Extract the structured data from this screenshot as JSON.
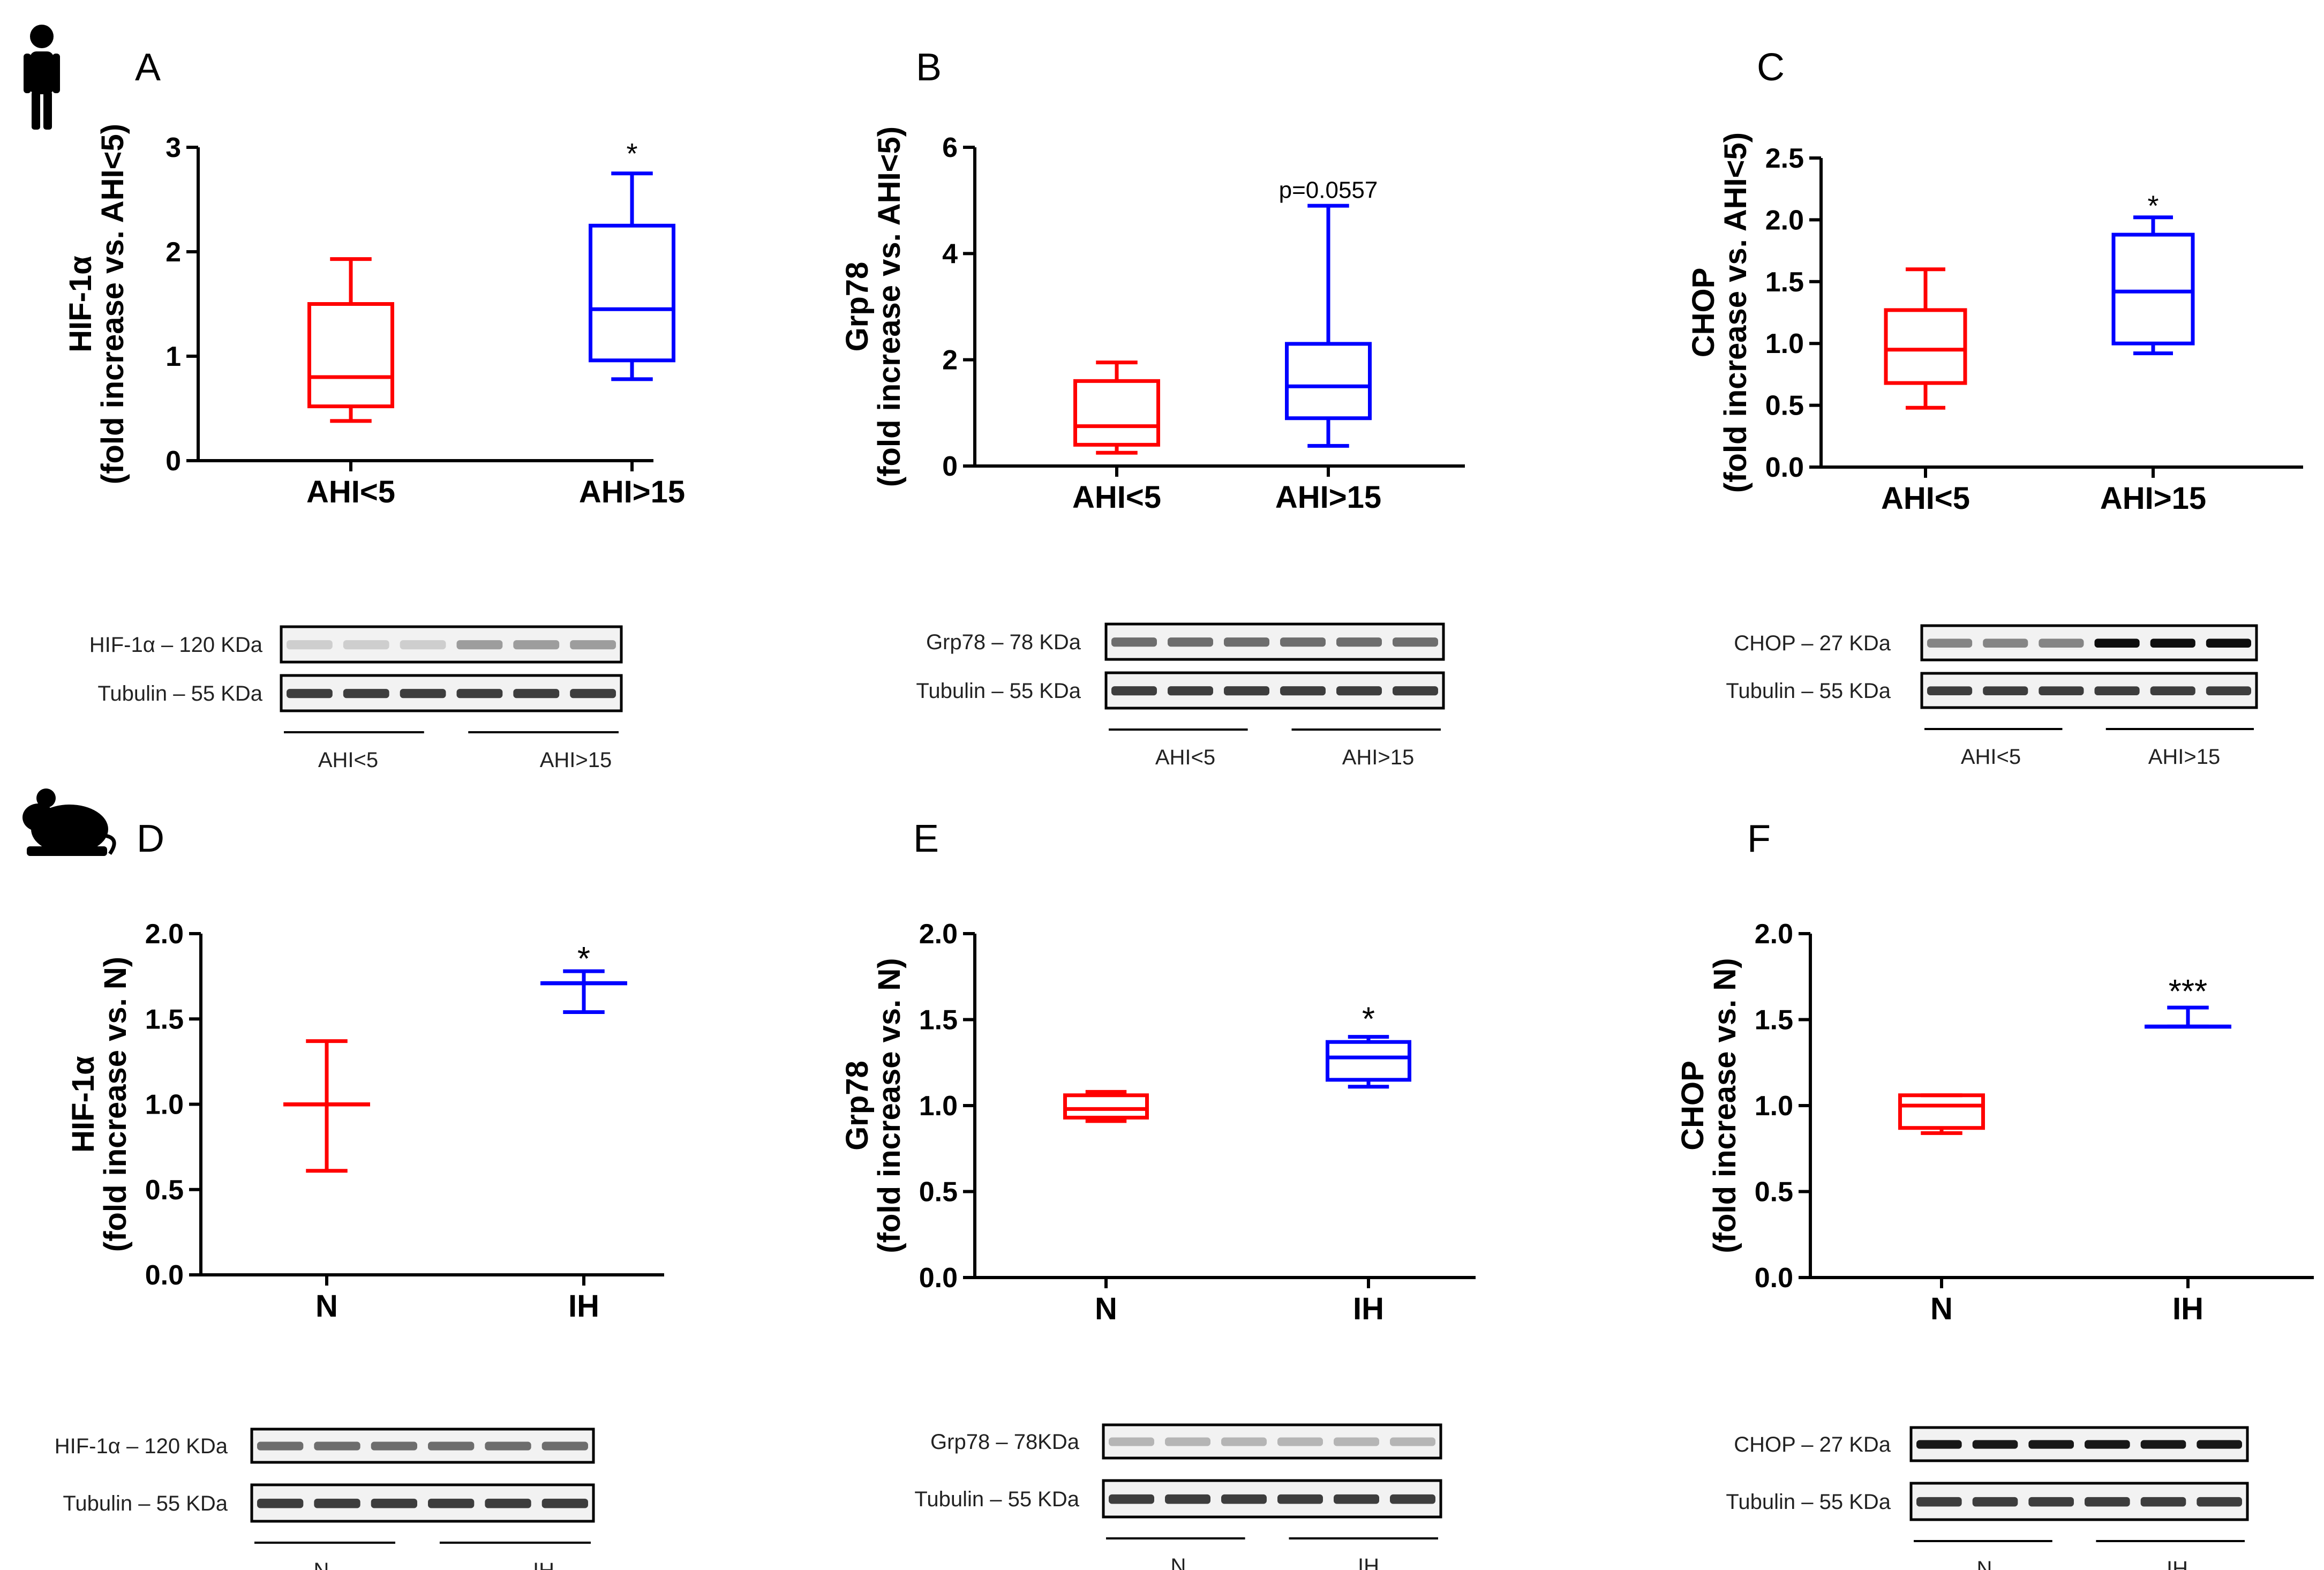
{
  "colors": {
    "group1": "#ff0000",
    "group2": "#0000ff",
    "axis": "#000000"
  },
  "icons": {
    "human": "human-silhouette-icon",
    "mouse": "mouse-silhouette-icon"
  },
  "chart_data": [
    {
      "id": "A",
      "type": "box",
      "panel_label": "A",
      "ylabel_line1": "HIF-1α",
      "ylabel_line2": "(fold increase vs. AHI<5)",
      "ylim": [
        0,
        3
      ],
      "yticks": [
        0,
        1,
        2,
        3
      ],
      "ytick_labels": [
        "0",
        "1",
        "2",
        "3"
      ],
      "categories": [
        "AHI<5",
        "AHI>15"
      ],
      "series": [
        {
          "name": "AHI<5",
          "min": 0.38,
          "q1": 0.52,
          "median": 0.8,
          "q3": 1.5,
          "max": 1.93
        },
        {
          "name": "AHI>15",
          "min": 0.78,
          "q1": 0.96,
          "median": 1.45,
          "q3": 2.25,
          "max": 2.75
        }
      ],
      "annotations": [
        {
          "category": 1,
          "text": "*",
          "y": 2.95
        }
      ],
      "blots": [
        {
          "label": "HIF-1α – 120 KDa"
        },
        {
          "label": "Tubulin – 55 KDa"
        }
      ],
      "blot_groups": [
        "AHI<5",
        "AHI>15"
      ]
    },
    {
      "id": "B",
      "type": "box",
      "panel_label": "B",
      "ylabel_line1": "Grp78",
      "ylabel_line2": "(fold increase vs. AHI<5)",
      "ylim": [
        0,
        6
      ],
      "yticks": [
        0,
        2,
        4,
        6
      ],
      "ytick_labels": [
        "0",
        "2",
        "4",
        "6"
      ],
      "categories": [
        "AHI<5",
        "AHI>15"
      ],
      "series": [
        {
          "name": "AHI<5",
          "min": 0.25,
          "q1": 0.4,
          "median": 0.75,
          "q3": 1.6,
          "max": 1.95
        },
        {
          "name": "AHI>15",
          "min": 0.38,
          "q1": 0.9,
          "median": 1.5,
          "q3": 2.3,
          "max": 4.9
        }
      ],
      "annotations": [
        {
          "category": 1,
          "text": "p=0.0557",
          "y": 5.25
        }
      ],
      "blots": [
        {
          "label": "Grp78 – 78 KDa"
        },
        {
          "label": "Tubulin – 55 KDa"
        }
      ],
      "blot_groups": [
        "AHI<5",
        "AHI>15"
      ]
    },
    {
      "id": "C",
      "type": "box",
      "panel_label": "C",
      "ylabel_line1": "CHOP",
      "ylabel_line2": "(fold increase vs. AHI<5)",
      "ylim": [
        0,
        2.5
      ],
      "yticks": [
        0,
        0.5,
        1,
        1.5,
        2,
        2.5
      ],
      "ytick_labels": [
        "0.0",
        "0.5",
        "1.0",
        "1.5",
        "2.0",
        "2.5"
      ],
      "categories": [
        "AHI<5",
        "AHI>15"
      ],
      "series": [
        {
          "name": "AHI<5",
          "min": 0.48,
          "q1": 0.68,
          "median": 0.95,
          "q3": 1.27,
          "max": 1.6
        },
        {
          "name": "AHI>15",
          "min": 0.92,
          "q1": 1.0,
          "median": 1.42,
          "q3": 1.88,
          "max": 2.02
        }
      ],
      "annotations": [
        {
          "category": 1,
          "text": "*",
          "y": 2.12
        }
      ],
      "blots": [
        {
          "label": "CHOP – 27 KDa"
        },
        {
          "label": "Tubulin – 55 KDa"
        }
      ],
      "blot_groups": [
        "AHI<5",
        "AHI>15"
      ]
    },
    {
      "id": "D",
      "type": "box",
      "panel_label": "D",
      "ylabel_line1": "HIF-1α",
      "ylabel_line2": "(fold increase vs. N)",
      "ylim": [
        0,
        2
      ],
      "yticks": [
        0,
        0.5,
        1,
        1.5,
        2
      ],
      "ytick_labels": [
        "0.0",
        "0.5",
        "1.0",
        "1.5",
        "2.0"
      ],
      "categories": [
        "N",
        "IH"
      ],
      "series": [
        {
          "name": "N",
          "min": 0.61,
          "q1": 1.0,
          "median": 1.0,
          "q3": 1.0,
          "max": 1.37
        },
        {
          "name": "IH",
          "min": 1.54,
          "q1": 1.71,
          "median": 1.71,
          "q3": 1.71,
          "max": 1.78
        }
      ],
      "annotations": [
        {
          "category": 1,
          "text": "*",
          "y": 1.85
        }
      ],
      "blots": [
        {
          "label": "HIF-1α – 120 KDa"
        },
        {
          "label": "Tubulin – 55 KDa"
        }
      ],
      "blot_groups": [
        "N",
        "IH"
      ]
    },
    {
      "id": "E",
      "type": "box",
      "panel_label": "E",
      "ylabel_line1": "Grp78",
      "ylabel_line2": "(fold increase vs. N)",
      "ylim": [
        0,
        2
      ],
      "yticks": [
        0,
        0.5,
        1,
        1.5,
        2
      ],
      "ytick_labels": [
        "0.0",
        "0.5",
        "1.0",
        "1.5",
        "2.0"
      ],
      "categories": [
        "N",
        "IH"
      ],
      "series": [
        {
          "name": "N",
          "min": 0.91,
          "q1": 0.93,
          "median": 0.98,
          "q3": 1.06,
          "max": 1.08
        },
        {
          "name": "IH",
          "min": 1.11,
          "q1": 1.15,
          "median": 1.28,
          "q3": 1.37,
          "max": 1.4
        }
      ],
      "annotations": [
        {
          "category": 1,
          "text": "*",
          "y": 1.5
        }
      ],
      "blots": [
        {
          "label": "Grp78 – 78KDa"
        },
        {
          "label": "Tubulin – 55 KDa"
        }
      ],
      "blot_groups": [
        "N",
        "IH"
      ]
    },
    {
      "id": "F",
      "type": "box",
      "panel_label": "F",
      "ylabel_line1": "CHOP",
      "ylabel_line2": "(fold increase vs. N)",
      "ylim": [
        0,
        2
      ],
      "yticks": [
        0,
        0.5,
        1,
        1.5,
        2
      ],
      "ytick_labels": [
        "0.0",
        "0.5",
        "1.0",
        "1.5",
        "2.0"
      ],
      "categories": [
        "N",
        "IH"
      ],
      "series": [
        {
          "name": "N",
          "min": 0.84,
          "q1": 0.87,
          "median": 1.0,
          "q3": 1.06,
          "max": 1.06
        },
        {
          "name": "IH",
          "min": 1.46,
          "q1": 1.46,
          "median": 1.46,
          "q3": 1.46,
          "max": 1.57
        }
      ],
      "annotations": [
        {
          "category": 1,
          "text": "***",
          "y": 1.66
        }
      ],
      "blots": [
        {
          "label": "CHOP – 27 KDa"
        },
        {
          "label": "Tubulin – 55 KDa"
        }
      ],
      "blot_groups": [
        "N",
        "IH"
      ]
    }
  ]
}
